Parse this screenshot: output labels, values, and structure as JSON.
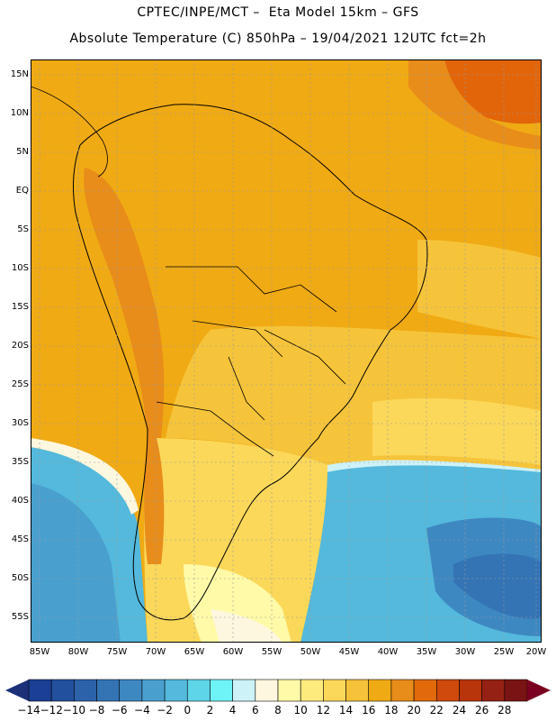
{
  "title_line1": "CPTEC/INPE/MCT –  Eta Model 15km – GFS",
  "title_line2": "Absolute Temperature (C) 850hPa – 19/04/2021 12UTC fct=2h",
  "lat_labels": [
    "15N",
    "10N",
    "5N",
    "EQ",
    "5S",
    "10S",
    "15S",
    "20S",
    "25S",
    "30S",
    "35S",
    "40S",
    "45S",
    "50S",
    "55S"
  ],
  "lon_labels": [
    "85W",
    "80W",
    "75W",
    "70W",
    "65W",
    "60W",
    "55W",
    "50W",
    "45W",
    "40W",
    "35W",
    "30W",
    "25W",
    "20W"
  ],
  "colorbar": {
    "labels": [
      "-14",
      "-12",
      "-10",
      "-8",
      "-6",
      "-4",
      "-2",
      "0",
      "2",
      "4",
      "6",
      "8",
      "10",
      "12",
      "14",
      "16",
      "18",
      "20",
      "22",
      "24",
      "26",
      "28"
    ],
    "colors": [
      "#1b3f94",
      "#23509e",
      "#2b62aa",
      "#3474b5",
      "#3e88c2",
      "#49a0cf",
      "#54b9dc",
      "#5ed5e8",
      "#6ef3f7",
      "#cdf2f7",
      "#fdf7df",
      "#fefaa8",
      "#fdeb7e",
      "#fbd85a",
      "#f5c23a",
      "#f0aa14",
      "#e88c1a",
      "#e26a0a",
      "#cf4a0c",
      "#b8340a",
      "#952114",
      "#7a1414"
    ],
    "arrow_left_color": "#1b3079",
    "arrow_right_color": "#7a0020"
  },
  "field_colors": {
    "very_warm": "#e2650a",
    "warm": "#eea020",
    "mild_warm": "#f1b21e",
    "mild": "#f6c43a",
    "cool": "#fbd85a",
    "cooler": "#fdeb7e",
    "pale": "#fefaa8",
    "cream": "#fdf7df",
    "cold1": "#cdf2f7",
    "cold2": "#6ef3f7",
    "cold3": "#54b9dc",
    "cold4": "#49a0cf",
    "cold5": "#3e88c2",
    "cold6": "#3474b5",
    "coast": "#000000"
  }
}
